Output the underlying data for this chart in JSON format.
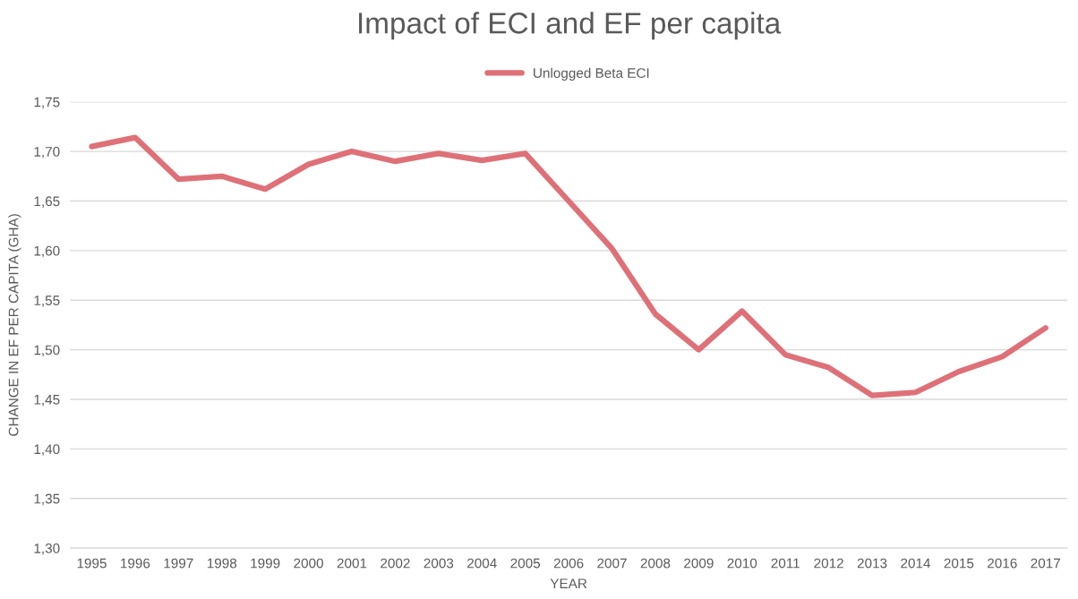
{
  "chart_data": {
    "type": "line",
    "title": "Impact of ECI and EF per capita",
    "xlabel": "YEAR",
    "ylabel": "CHANGE IN EF PER CAPITA (GHA)",
    "categories": [
      "1995",
      "1996",
      "1997",
      "1998",
      "1999",
      "2000",
      "2001",
      "2002",
      "2003",
      "2004",
      "2005",
      "2006",
      "2007",
      "2008",
      "2009",
      "2010",
      "2011",
      "2012",
      "2013",
      "2014",
      "2015",
      "2016",
      "2017"
    ],
    "series": [
      {
        "name": "Unlogged Beta ECI",
        "color": "#de7077",
        "values": [
          1.705,
          1.714,
          1.672,
          1.675,
          1.662,
          1.687,
          1.7,
          1.69,
          1.698,
          1.691,
          1.698,
          1.65,
          1.602,
          1.536,
          1.5,
          1.539,
          1.495,
          1.482,
          1.454,
          1.457,
          1.478,
          1.493,
          1.522
        ]
      }
    ],
    "ylim": [
      1.3,
      1.75
    ],
    "yticks": [
      {
        "value": 1.3,
        "label": "1,30"
      },
      {
        "value": 1.35,
        "label": "1,35"
      },
      {
        "value": 1.4,
        "label": "1,40"
      },
      {
        "value": 1.45,
        "label": "1,45"
      },
      {
        "value": 1.5,
        "label": "1,50"
      },
      {
        "value": 1.55,
        "label": "1,55"
      },
      {
        "value": 1.6,
        "label": "1,60"
      },
      {
        "value": 1.65,
        "label": "1,65"
      },
      {
        "value": 1.7,
        "label": "1,70"
      },
      {
        "value": 1.75,
        "label": "1,75"
      }
    ],
    "grid": "y",
    "legend": "top",
    "marker": "none",
    "line_style": "solid"
  }
}
